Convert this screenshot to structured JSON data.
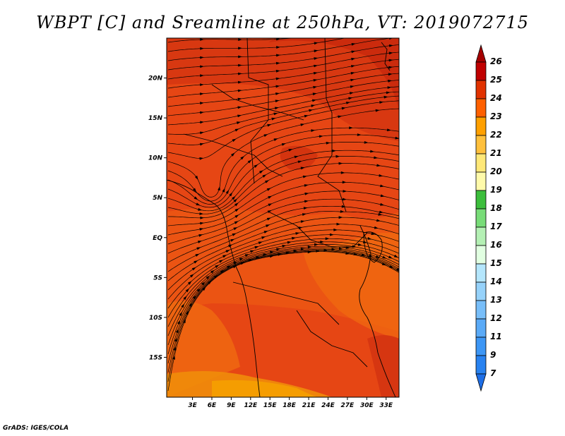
{
  "title": "WBPT [C] and Sreamline at 250hPa, VT: 2019072715",
  "credit": "GrADS: IGES/COLA",
  "map": {
    "lon_range": [
      -1,
      35
    ],
    "lat_range": [
      -20,
      25
    ],
    "lat_ticks": [
      {
        "value": 20,
        "label": "20N"
      },
      {
        "value": 15,
        "label": "15N"
      },
      {
        "value": 10,
        "label": "10N"
      },
      {
        "value": 5,
        "label": "5N"
      },
      {
        "value": 0,
        "label": "EQ"
      },
      {
        "value": -5,
        "label": "5S"
      },
      {
        "value": -10,
        "label": "10S"
      },
      {
        "value": -15,
        "label": "15S"
      }
    ],
    "lon_ticks": [
      {
        "value": 3,
        "label": "3E"
      },
      {
        "value": 6,
        "label": "6E"
      },
      {
        "value": 9,
        "label": "9E"
      },
      {
        "value": 12,
        "label": "12E"
      },
      {
        "value": 15,
        "label": "15E"
      },
      {
        "value": 18,
        "label": "18E"
      },
      {
        "value": 21,
        "label": "21E"
      },
      {
        "value": 24,
        "label": "24E"
      },
      {
        "value": 27,
        "label": "27E"
      },
      {
        "value": 30,
        "label": "30E"
      },
      {
        "value": 33,
        "label": "33E"
      }
    ]
  },
  "colorbar": {
    "levels": [
      "7",
      "9",
      "11",
      "12",
      "13",
      "14",
      "15",
      "16",
      "17",
      "18",
      "19",
      "20",
      "21",
      "22",
      "23",
      "24",
      "25",
      "26"
    ],
    "colors": [
      "#1e6ee6",
      "#2882f0",
      "#3c96f5",
      "#5aaaf7",
      "#78bef9",
      "#96d2fa",
      "#b4e6fc",
      "#e1ffe1",
      "#b4f0b4",
      "#78dc78",
      "#3cbe3c",
      "#fffaaa",
      "#ffe878",
      "#ffc03c",
      "#ffa000",
      "#ff6000",
      "#e13200",
      "#c00000",
      "#a50000"
    ]
  },
  "colors": {
    "field_base": "#e64614",
    "field_warm": "#d23210",
    "field_cool": "#f0780a",
    "field_cooler": "#f5a000",
    "streamline": "#000000"
  }
}
